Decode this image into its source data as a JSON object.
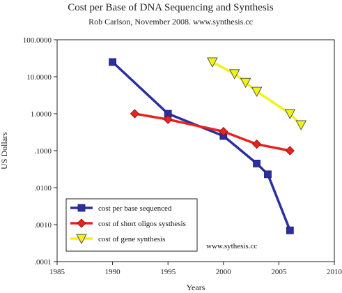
{
  "chart_data": {
    "type": "line",
    "title": "Cost per Base of DNA Sequencing and Synthesis",
    "subtitle": "Rob Carlson, November 2008. www.synthesis.cc",
    "xlabel": "Years",
    "ylabel": "US Dollars",
    "xlim": [
      1985,
      2010
    ],
    "ylim": [
      0.0001,
      100
    ],
    "yscale": "log",
    "x_ticks": [
      "1985",
      "1990",
      "1995",
      "2000",
      "2005",
      "2010"
    ],
    "y_ticks": [
      "100.0000",
      "10.0000",
      "1.0000",
      ".1000",
      ".0100",
      ".0010",
      ".0001"
    ],
    "grid": false,
    "legend_position": "bottom-left",
    "annotation": "www.sythesis.cc",
    "series": [
      {
        "name": "cost per base sequenced",
        "color": "#2b2f9e",
        "marker": "square",
        "x": [
          1990,
          1995,
          2000,
          2003,
          2004,
          2006
        ],
        "y": [
          25,
          1.0,
          0.25,
          0.045,
          0.023,
          0.0007
        ]
      },
      {
        "name": "cost of short oligos systhesis",
        "color": "#e8231f",
        "marker": "diamond",
        "x": [
          1992,
          1995,
          2000,
          2003,
          2006
        ],
        "y": [
          1.0,
          0.7,
          0.33,
          0.15,
          0.1
        ]
      },
      {
        "name": "cost of gene synthesis",
        "color": "#f2f21a",
        "marker": "triangle-down",
        "x": [
          1999,
          2001,
          2002,
          2003,
          2006,
          2007
        ],
        "y": [
          25,
          12,
          7,
          4,
          1.0,
          0.5
        ]
      }
    ]
  }
}
